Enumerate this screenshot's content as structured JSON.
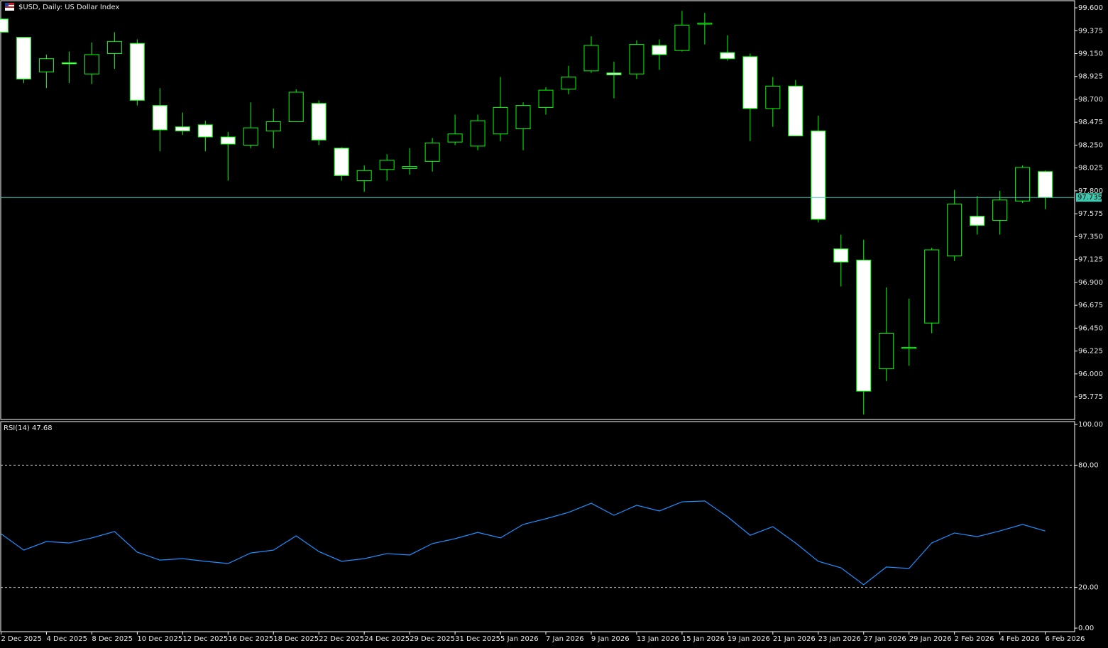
{
  "chart_data": [
    {
      "type": "candlestick",
      "title": "$USD, Daily:  US Dollar Index",
      "categories": [
        "2 Dec 2025",
        null,
        "4 Dec 2025",
        null,
        "8 Dec 2025",
        null,
        "10 Dec 2025",
        null,
        "12 Dec 2025",
        null,
        "16 Dec 2025",
        null,
        "18 Dec 2025",
        null,
        "22 Dec 2025",
        null,
        "24 Dec 2025",
        null,
        "29 Dec 2025",
        null,
        "31 Dec 2025",
        null,
        "5 Jan 2026",
        null,
        "7 Jan 2026",
        null,
        "9 Jan 2026",
        null,
        "13 Jan 2026",
        null,
        "15 Jan 2026",
        null,
        "19 Jan 2026",
        null,
        "21 Jan 2026",
        null,
        "23 Jan 2026",
        null,
        "27 Jan 2026",
        null,
        "29 Jan 2026",
        null,
        "2 Feb 2026",
        null,
        "4 Feb 2026",
        null,
        "6 Feb 2026"
      ],
      "open": [
        99.49,
        99.31,
        98.97,
        99.06,
        98.95,
        99.15,
        99.25,
        98.64,
        98.43,
        98.45,
        98.33,
        98.25,
        98.39,
        98.48,
        98.66,
        98.22,
        97.9,
        98.01,
        98.02,
        98.09,
        98.28,
        98.24,
        98.36,
        98.41,
        98.62,
        98.8,
        98.98,
        98.96,
        98.95,
        99.23,
        99.18,
        99.45,
        99.16,
        99.12,
        98.61,
        98.83,
        98.39,
        97.23,
        97.12,
        96.05,
        96.26,
        96.5,
        97.16,
        97.55,
        97.51,
        97.7,
        97.99
      ],
      "high": [
        99.5,
        99.31,
        99.14,
        99.17,
        99.26,
        99.36,
        99.29,
        98.81,
        98.57,
        98.49,
        98.38,
        98.67,
        98.61,
        98.8,
        98.69,
        98.23,
        98.05,
        98.16,
        98.22,
        98.32,
        98.55,
        98.55,
        98.92,
        98.67,
        98.82,
        99.03,
        99.32,
        99.07,
        99.28,
        99.29,
        99.57,
        99.55,
        99.33,
        99.15,
        98.92,
        98.89,
        98.54,
        97.37,
        97.32,
        96.85,
        96.74,
        97.24,
        97.81,
        97.75,
        97.8,
        98.05,
        98.0
      ],
      "low": [
        99.36,
        98.86,
        98.81,
        98.86,
        98.85,
        99.0,
        98.64,
        98.19,
        98.35,
        98.19,
        97.9,
        98.22,
        98.22,
        98.48,
        98.25,
        97.9,
        97.79,
        97.9,
        97.96,
        97.99,
        98.25,
        98.2,
        98.29,
        98.2,
        98.55,
        98.75,
        98.96,
        98.71,
        98.9,
        98.99,
        99.17,
        99.24,
        99.08,
        98.29,
        98.43,
        98.34,
        97.49,
        96.86,
        95.6,
        95.93,
        96.08,
        96.4,
        97.11,
        97.37,
        97.37,
        97.68,
        97.62
      ],
      "close": [
        99.36,
        98.9,
        99.1,
        99.05,
        99.14,
        99.27,
        98.69,
        98.4,
        98.39,
        98.33,
        98.26,
        98.42,
        98.48,
        98.77,
        98.3,
        97.95,
        98.0,
        98.1,
        98.04,
        98.27,
        98.36,
        98.49,
        98.62,
        98.64,
        98.79,
        98.92,
        99.23,
        98.94,
        99.24,
        99.14,
        99.43,
        99.45,
        99.1,
        98.61,
        98.83,
        98.34,
        97.52,
        97.1,
        95.83,
        96.4,
        96.26,
        97.22,
        97.67,
        97.46,
        97.71,
        98.03,
        97.735
      ],
      "ylim": [
        95.559,
        99.663
      ],
      "yticks": [
        {
          "value": 99.6,
          "label": "99.600"
        },
        {
          "value": 99.375,
          "label": "99.375"
        },
        {
          "value": 99.15,
          "label": "99.150"
        },
        {
          "value": 98.925,
          "label": "98.925"
        },
        {
          "value": 98.7,
          "label": "98.700"
        },
        {
          "value": 98.475,
          "label": "98.475"
        },
        {
          "value": 98.25,
          "label": "98.250"
        },
        {
          "value": 98.025,
          "label": "98.025"
        },
        {
          "value": 97.8,
          "label": "97.800"
        },
        {
          "value": 97.575,
          "label": "97.575"
        },
        {
          "value": 97.35,
          "label": "97.350"
        },
        {
          "value": 97.125,
          "label": "97.125"
        },
        {
          "value": 96.9,
          "label": "96.900"
        },
        {
          "value": 96.675,
          "label": "96.675"
        },
        {
          "value": 96.45,
          "label": "96.450"
        },
        {
          "value": 96.225,
          "label": "96.225"
        },
        {
          "value": 96.0,
          "label": "96.000"
        },
        {
          "value": 95.775,
          "label": "95.775"
        }
      ],
      "last_price": 97.735,
      "up_color": "#000000",
      "down_color": "#ffffff",
      "wick_color": "#00ff00",
      "price_line_color": "#3fc8b0"
    },
    {
      "type": "line",
      "title": "RSI(14) 47.68",
      "values": [
        46.3,
        38.3,
        42.5,
        41.8,
        44.3,
        47.4,
        37.3,
        33.4,
        34.1,
        32.8,
        31.7,
        36.9,
        38.3,
        45.3,
        37.6,
        32.8,
        34.1,
        36.6,
        35.9,
        41.5,
        43.9,
        47.0,
        44.3,
        50.9,
        53.7,
        56.8,
        61.3,
        55.4,
        60.3,
        57.5,
        62.0,
        62.4,
        54.7,
        45.6,
        49.8,
        41.8,
        32.8,
        29.6,
        21.3,
        30.0,
        29.3,
        41.8,
        46.7,
        44.9,
        47.7,
        50.9,
        47.68
      ],
      "color": "#1e90ff",
      "ylim": [
        0,
        100
      ],
      "yticks": [
        {
          "value": 100,
          "label": "100.00"
        },
        {
          "value": 80,
          "label": "80.00"
        },
        {
          "value": 20,
          "label": "20.00"
        },
        {
          "value": 0,
          "label": "0.00"
        }
      ]
    }
  ]
}
